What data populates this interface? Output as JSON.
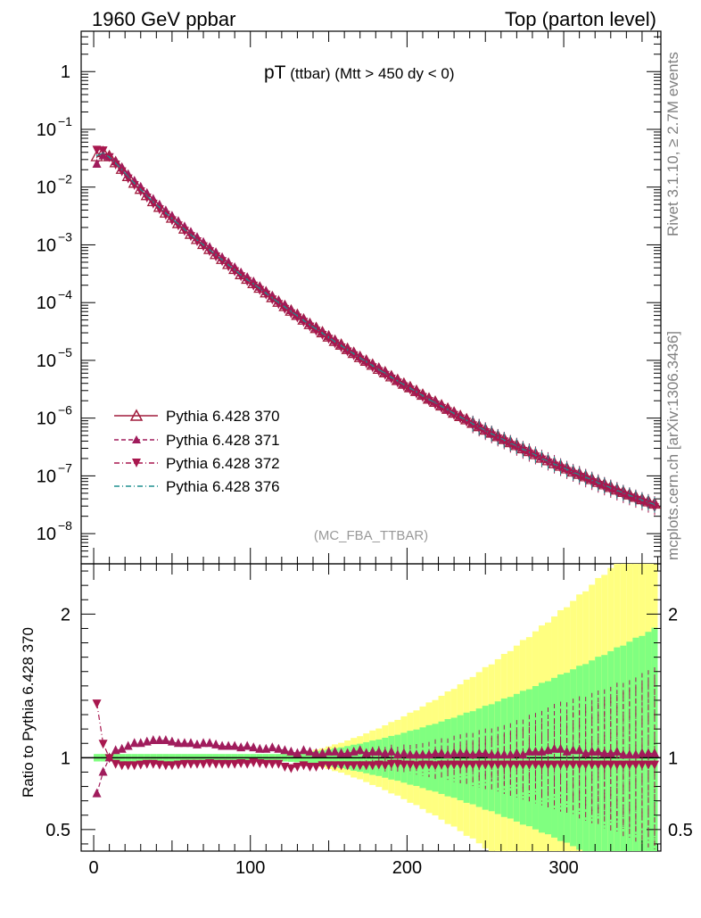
{
  "header": {
    "left": "1960 GeV ppbar",
    "right": "Top (parton level)"
  },
  "side": {
    "rivet": "Rivet 3.1.10, ≥ 2.7M events",
    "mcplots": "mcplots.cern.ch [arXiv:1306.3436]"
  },
  "plot": {
    "title_main": "pT",
    "title_sub": " (ttbar) (Mtt > 450 dy < 0)",
    "watermark": "(MC_FBA_TTBAR)",
    "ratio_ylabel": "Ratio to Pythia 6.428 370"
  },
  "chart_data": {
    "type": "scatter",
    "x": [
      2,
      6,
      10,
      14,
      18,
      22,
      26,
      30,
      34,
      38,
      42,
      46,
      50,
      54,
      58,
      62,
      66,
      70,
      74,
      78,
      82,
      86,
      90,
      94,
      98,
      102,
      106,
      110,
      114,
      118,
      122,
      126,
      130,
      134,
      138,
      142,
      146,
      150,
      154,
      158,
      162,
      166,
      170,
      174,
      178,
      182,
      186,
      190,
      194,
      198,
      202,
      206,
      210,
      214,
      218,
      222,
      226,
      230,
      234,
      238,
      242,
      246,
      250,
      254,
      258,
      262,
      266,
      270,
      274,
      278,
      282,
      286,
      290,
      294,
      298,
      302,
      306,
      310,
      314,
      318,
      322,
      326,
      330,
      334,
      338,
      342,
      346,
      350,
      354,
      358
    ],
    "series": [
      {
        "name": "Pythia 6.428 370",
        "values": [
          0.033,
          0.039,
          0.033,
          0.026,
          0.02,
          0.015,
          0.0115,
          0.009,
          0.007,
          0.0055,
          0.0044,
          0.0035,
          0.00285,
          0.0023,
          0.00185,
          0.0015,
          0.00122,
          0.001,
          0.00082,
          0.00067,
          0.00055,
          0.00045,
          0.00037,
          0.0003,
          0.00025,
          0.00021,
          0.000175,
          0.000145,
          0.00012,
          0.0001,
          8.4e-05,
          7e-05,
          5.9e-05,
          4.9e-05,
          4.1e-05,
          3.5e-05,
          2.95e-05,
          2.5e-05,
          2.1e-05,
          1.8e-05,
          1.52e-05,
          1.3e-05,
          1.1e-05,
          9.5e-06,
          8.1e-06,
          6.9e-06,
          6e-06,
          5.1e-06,
          4.4e-06,
          3.8e-06,
          3.3e-06,
          2.85e-06,
          2.45e-06,
          2.1e-06,
          1.85e-06,
          1.6e-06,
          1.4e-06,
          1.2e-06,
          1.05e-06,
          9.2e-07,
          8e-07,
          7e-07,
          6.1e-07,
          5.4e-07,
          4.7e-07,
          4.2e-07,
          3.7e-07,
          3.3e-07,
          2.9e-07,
          2.6e-07,
          2.3e-07,
          2e-07,
          1.8e-07,
          1.6e-07,
          1.45e-07,
          1.3e-07,
          1.15e-07,
          1.05e-07,
          9.5e-08,
          8.5e-08,
          7.6e-08,
          6.9e-08,
          6.2e-08,
          5.6e-08,
          5.1e-08,
          4.6e-08,
          4.2e-08,
          3.8e-08,
          3.5e-08,
          3.2e-08
        ]
      },
      {
        "name": "Pythia 6.428 371",
        "values": [
          0.025,
          0.035,
          0.033,
          0.0275,
          0.0215,
          0.0165,
          0.0127,
          0.01,
          0.0078,
          0.00615,
          0.0049,
          0.0039,
          0.00315,
          0.00255,
          0.00205,
          0.00165,
          0.00134,
          0.0011,
          0.0009,
          0.00073,
          0.0006,
          0.00049,
          0.0004,
          0.000325,
          0.00027,
          0.000225,
          0.000185,
          0.000155,
          0.000128,
          0.000106,
          8.8e-05,
          7.3e-05,
          6.1e-05,
          5.1e-05,
          4.3e-05,
          3.6e-05,
          3.05e-05,
          2.6e-05,
          2.2e-05,
          1.85e-05,
          1.57e-05,
          1.35e-05,
          1.15e-05,
          9.8e-06,
          8.4e-06,
          7.2e-06,
          6.2e-06,
          5.3e-06,
          4.5e-06,
          3.9e-06,
          3.35e-06,
          2.9e-06,
          2.5e-06,
          2.15e-06,
          1.9e-06,
          1.65e-06,
          1.42e-06,
          1.24e-06,
          1.08e-06,
          9.5e-07,
          8.2e-07,
          7.2e-07,
          6.3e-07,
          5.5e-07,
          4.8e-07,
          4.3e-07,
          3.8e-07,
          3.4e-07,
          3e-07,
          2.7e-07,
          2.4e-07,
          2.1e-07,
          1.9e-07,
          1.7e-07,
          1.5e-07,
          1.35e-07,
          1.2e-07,
          1.1e-07,
          9.8e-08,
          8.8e-08,
          7.9e-08,
          7.1e-08,
          6.4e-08,
          5.8e-08,
          5.2e-08,
          4.7e-08,
          4.3e-08,
          3.9e-08,
          3.6e-08,
          3.3e-08
        ]
      },
      {
        "name": "Pythia 6.428 372",
        "values": [
          0.045,
          0.044,
          0.0335,
          0.025,
          0.019,
          0.0143,
          0.011,
          0.0086,
          0.0067,
          0.00525,
          0.0042,
          0.00335,
          0.0027,
          0.0022,
          0.00177,
          0.00144,
          0.00117,
          0.00096,
          0.00079,
          0.00064,
          0.00053,
          0.00043,
          0.000355,
          0.00029,
          0.00024,
          0.0002,
          0.000168,
          0.00014,
          0.000115,
          9.6e-05,
          7.9e-05,
          6.6e-05,
          5.6e-05,
          4.7e-05,
          3.9e-05,
          3.3e-05,
          2.8e-05,
          2.4e-05,
          2e-05,
          1.7e-05,
          1.45e-05,
          1.24e-05,
          1.05e-05,
          9e-06,
          7.7e-06,
          6.6e-06,
          5.7e-06,
          4.9e-06,
          4.2e-06,
          3.6e-06,
          3.15e-06,
          2.7e-06,
          2.35e-06,
          2e-06,
          1.75e-06,
          1.52e-06,
          1.33e-06,
          1.15e-06,
          1e-06,
          8.8e-07,
          7.6e-07,
          6.7e-07,
          5.8e-07,
          5.1e-07,
          4.5e-07,
          4e-07,
          3.5e-07,
          3.1e-07,
          2.75e-07,
          2.45e-07,
          2.2e-07,
          1.95e-07,
          1.72e-07,
          1.53e-07,
          1.38e-07,
          1.23e-07,
          1.1e-07,
          9.8e-08,
          8.8e-08,
          7.9e-08,
          7.1e-08,
          6.4e-08,
          5.8e-08,
          5.2e-08,
          4.7e-08,
          4.3e-08,
          3.9e-08,
          3.5e-08,
          3.2e-08,
          2.9e-08
        ]
      },
      {
        "name": "Pythia 6.428 376",
        "values": [
          0.035,
          0.039,
          0.033,
          0.026,
          0.02,
          0.0152,
          0.0116,
          0.0091,
          0.0071,
          0.00555,
          0.00445,
          0.00355,
          0.00285,
          0.0023,
          0.00185,
          0.0015,
          0.00122,
          0.001,
          0.00082,
          0.00067,
          0.00055,
          0.00045,
          0.00037,
          0.0003,
          0.00025,
          0.00021,
          0.000175,
          0.000145,
          0.00012,
          0.0001,
          8.4e-05,
          7e-05,
          5.9e-05,
          4.9e-05,
          4.1e-05,
          3.5e-05,
          2.95e-05,
          2.5e-05,
          2.1e-05,
          1.8e-05,
          1.52e-05,
          1.3e-05,
          1.1e-05,
          9.5e-06,
          8.1e-06,
          6.9e-06,
          6e-06,
          5.1e-06,
          4.4e-06,
          3.8e-06,
          3.3e-06,
          2.85e-06,
          2.45e-06,
          2.1e-06,
          1.85e-06,
          1.6e-06,
          1.4e-06,
          1.2e-06,
          1.05e-06,
          9.2e-07,
          8e-07,
          7e-07,
          6.1e-07,
          5.4e-07,
          4.7e-07,
          4.2e-07,
          3.7e-07,
          3.3e-07,
          2.9e-07,
          2.6e-07,
          2.3e-07,
          2e-07,
          1.8e-07,
          1.6e-07,
          1.45e-07,
          1.3e-07,
          1.15e-07,
          1.05e-07,
          9.5e-08,
          8.5e-08,
          7.6e-08,
          6.9e-08,
          6.2e-08,
          5.6e-08,
          5.1e-08,
          4.6e-08,
          4.2e-08,
          3.8e-08,
          3.5e-08,
          3.2e-08
        ]
      }
    ],
    "ratio": {
      "371": [
        0.75,
        0.9,
        1.0,
        1.05,
        1.06,
        1.08,
        1.1,
        1.1,
        1.11,
        1.12,
        1.12,
        1.12,
        1.11,
        1.1,
        1.1,
        1.1,
        1.09,
        1.1,
        1.1,
        1.09,
        1.08,
        1.08,
        1.08,
        1.07,
        1.08,
        1.07,
        1.06,
        1.06,
        1.07,
        1.06,
        1.05,
        1.04,
        1.03,
        1.05,
        1.04,
        1.03,
        1.03,
        1.04,
        1.04,
        1.03,
        1.03,
        1.04,
        1.05,
        1.03,
        1.04,
        1.04,
        1.03,
        1.04,
        1.02,
        1.03,
        1.02,
        1.02,
        1.02,
        1.02,
        1.03,
        1.03,
        1.02,
        1.03,
        1.03,
        1.03,
        1.02,
        1.03,
        1.03,
        1.02,
        1.02,
        1.02,
        1.02,
        1.03,
        1.02,
        1.04,
        1.04,
        1.04,
        1.05,
        1.06,
        1.06,
        1.04,
        1.05,
        1.05,
        1.03,
        1.04,
        1.04,
        1.03,
        1.03,
        1.04,
        1.02,
        1.02,
        1.02,
        1.03,
        1.03,
        1.03
      ],
      "372": [
        1.38,
        1.1,
        1.0,
        0.96,
        0.95,
        0.95,
        0.95,
        0.955,
        0.96,
        0.96,
        0.955,
        0.95,
        0.95,
        0.955,
        0.96,
        0.96,
        0.96,
        0.96,
        0.965,
        0.96,
        0.96,
        0.96,
        0.96,
        0.965,
        0.96,
        0.97,
        0.965,
        0.96,
        0.96,
        0.96,
        0.94,
        0.93,
        0.94,
        0.95,
        0.94,
        0.94,
        0.95,
        0.95,
        0.95,
        0.95,
        0.95,
        0.95,
        0.95,
        0.95,
        0.95,
        0.955,
        0.95,
        0.96,
        0.96,
        0.955,
        0.955,
        0.95,
        0.955,
        0.955,
        0.95,
        0.955,
        0.955,
        0.955,
        0.955,
        0.955,
        0.955,
        0.955,
        0.955,
        0.955,
        0.955,
        0.955,
        0.955,
        0.955,
        0.955,
        0.955,
        0.955,
        0.955,
        0.955,
        0.955,
        0.955,
        0.955,
        0.955,
        0.955,
        0.955,
        0.955,
        0.955,
        0.955,
        0.955,
        0.955,
        0.955,
        0.955,
        0.955,
        0.955,
        0.955,
        0.955
      ]
    },
    "xlim": [
      -8,
      362
    ],
    "ylim": [
      3e-09,
      5
    ],
    "ylog": true,
    "ratio_ylim": [
      0.35,
      2.35
    ],
    "x_ticks": [
      0,
      100,
      200,
      300
    ],
    "y_ticks": [
      "10^-8",
      "10^-7",
      "10^-6",
      "10^-5",
      "10^-4",
      "10^-3",
      "10^-2",
      "10^-1",
      "1"
    ],
    "ratio_ticks": [
      0.5,
      1,
      2
    ],
    "legend_position": "lower-left",
    "colors": {
      "370": "#a01c3c",
      "371": "#a01c5c",
      "372": "#a8174e",
      "376": "#1f8f8f",
      "band_yellow": "#ffff80",
      "band_green": "#80ff80"
    }
  }
}
